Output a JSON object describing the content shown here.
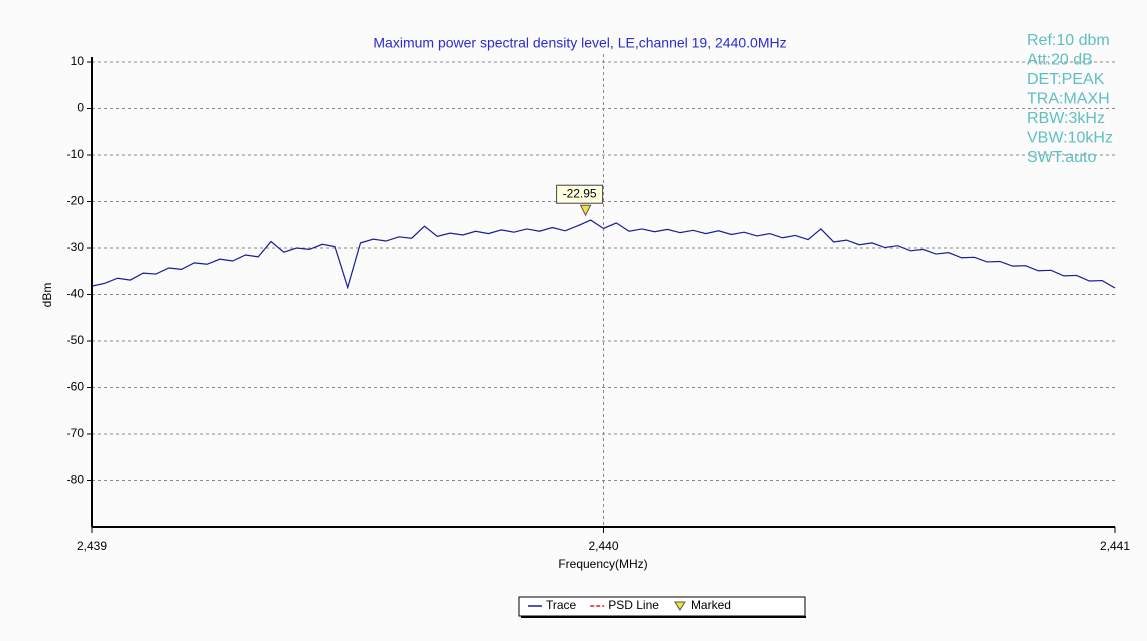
{
  "chart_data": {
    "type": "line",
    "title": "Maximum power spectral density level, LE,channel 19, 2440.0MHz",
    "x_label": "Frequency(MHz)",
    "y_label": "dBm",
    "xlim": [
      2439,
      2441
    ],
    "xticks": [
      {
        "value": 2439,
        "label": "2,439"
      },
      {
        "value": 2440,
        "label": "2,440"
      },
      {
        "value": 2441,
        "label": "2,441"
      }
    ],
    "ylim": [
      -90,
      10
    ],
    "yticks": [
      10,
      0,
      -10,
      -20,
      -30,
      -40,
      -50,
      -60,
      -70,
      -80
    ],
    "grid": true,
    "x": [
      2439,
      2439.025,
      2439.05,
      2439.075,
      2439.1,
      2439.125,
      2439.15,
      2439.175,
      2439.2,
      2439.225,
      2439.25,
      2439.275,
      2439.3,
      2439.325,
      2439.35,
      2439.375,
      2439.4,
      2439.425,
      2439.45,
      2439.475,
      2439.5,
      2439.525,
      2439.55,
      2439.575,
      2439.6,
      2439.625,
      2439.65,
      2439.675,
      2439.7,
      2439.725,
      2439.75,
      2439.775,
      2439.8,
      2439.825,
      2439.85,
      2439.875,
      2439.9,
      2439.925,
      2439.95,
      2439.975,
      2440,
      2440.025,
      2440.05,
      2440.075,
      2440.1,
      2440.125,
      2440.15,
      2440.175,
      2440.2,
      2440.225,
      2440.25,
      2440.275,
      2440.3,
      2440.325,
      2440.35,
      2440.375,
      2440.4,
      2440.425,
      2440.45,
      2440.475,
      2440.5,
      2440.525,
      2440.55,
      2440.575,
      2440.6,
      2440.625,
      2440.65,
      2440.675,
      2440.7,
      2440.725,
      2440.75,
      2440.775,
      2440.8,
      2440.825,
      2440.85,
      2440.875,
      2440.9,
      2440.925,
      2440.95,
      2440.975,
      2441
    ],
    "series": [
      {
        "name": "Trace",
        "color": "#1a1a9a",
        "values": [
          -38.2,
          -37.6,
          -36.5,
          -36.9,
          -35.4,
          -35.6,
          -34.3,
          -34.6,
          -33.2,
          -33.5,
          -32.4,
          -32.8,
          -31.5,
          -31.9,
          -28.6,
          -30.9,
          -30.0,
          -30.3,
          -29.2,
          -29.7,
          -38.5,
          -28.9,
          -28.1,
          -28.5,
          -27.6,
          -27.9,
          -25.3,
          -27.5,
          -26.8,
          -27.2,
          -26.4,
          -26.9,
          -26.1,
          -26.6,
          -25.9,
          -26.4,
          -25.6,
          -26.3,
          -25.2,
          -24.0,
          -25.8,
          -24.6,
          -26.4,
          -25.9,
          -26.5,
          -26.0,
          -26.7,
          -26.2,
          -26.9,
          -26.3,
          -27.1,
          -26.6,
          -27.4,
          -26.9,
          -27.8,
          -27.3,
          -28.2,
          -25.9,
          -28.7,
          -28.3,
          -29.3,
          -28.9,
          -29.9,
          -29.5,
          -30.6,
          -30.3,
          -31.3,
          -31.0,
          -32.1,
          -32.0,
          -33.0,
          -32.9,
          -33.9,
          -33.8,
          -34.9,
          -34.8,
          -36.0,
          -35.9,
          -37.1,
          -37.0,
          -38.6
        ]
      }
    ],
    "marker": {
      "name": "Marked",
      "color": "#f0e040",
      "x": 2439.965,
      "value": -22.95,
      "label": "-22.95"
    },
    "legend": [
      {
        "name": "Trace",
        "color": "#1a1a9a"
      },
      {
        "name": "PSD Line",
        "color": "#e02020"
      },
      {
        "name": "Marked",
        "color": "#f0e040"
      }
    ],
    "settings_text": [
      "Ref:10 dbm",
      "Att:20 dB",
      "DET:PEAK",
      "TRA:MAXH",
      "RBW:3kHz",
      "VBW:10kHz",
      "SWT:auto"
    ]
  }
}
